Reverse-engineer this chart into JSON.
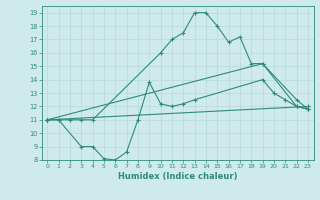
{
  "line1_x": [
    0,
    1,
    2,
    3,
    4,
    10,
    11,
    12,
    13,
    14,
    15,
    16,
    17,
    18,
    19,
    22,
    23
  ],
  "line1_y": [
    11,
    11,
    11,
    11,
    11,
    16,
    17,
    17.5,
    19,
    19,
    18,
    16.8,
    17.2,
    15.2,
    15.2,
    12,
    11.8
  ],
  "line2_x": [
    0,
    1,
    3,
    4,
    5,
    6,
    7,
    8,
    9,
    10,
    11,
    12,
    13,
    19,
    20,
    21,
    22,
    23
  ],
  "line2_y": [
    11,
    11,
    9,
    9,
    8.1,
    8.0,
    8.6,
    11,
    13.8,
    12.2,
    12,
    12.2,
    12.5,
    14,
    13,
    12.5,
    12,
    11.8
  ],
  "line3_x": [
    0,
    19,
    22,
    23
  ],
  "line3_y": [
    11,
    15.2,
    12.5,
    11.8
  ],
  "line4_x": [
    0,
    23
  ],
  "line4_y": [
    11,
    12
  ],
  "line_color": "#2e8b7a",
  "bg_color": "#ceeaea",
  "grid_color": "#b8d8d8",
  "xlabel": "Humidex (Indice chaleur)",
  "xlim": [
    -0.5,
    23.5
  ],
  "ylim": [
    8,
    19.5
  ],
  "xticks": [
    0,
    1,
    2,
    3,
    4,
    5,
    6,
    7,
    8,
    9,
    10,
    11,
    12,
    13,
    14,
    15,
    16,
    17,
    18,
    19,
    20,
    21,
    22,
    23
  ],
  "yticks": [
    8,
    9,
    10,
    11,
    12,
    13,
    14,
    15,
    16,
    17,
    18,
    19
  ],
  "marker": "+",
  "markersize": 3.5,
  "linewidth": 0.8
}
